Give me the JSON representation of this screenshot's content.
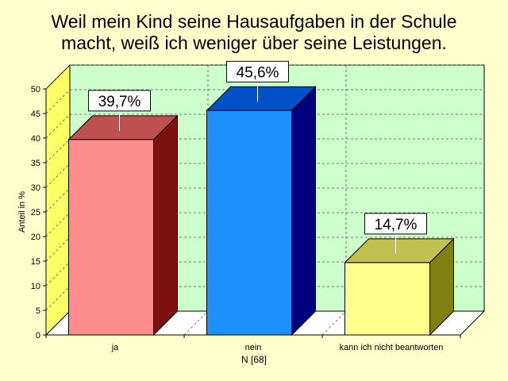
{
  "chart_data": {
    "type": "bar",
    "title": "Weil mein Kind seine Hausaufgaben in der Schule macht, weiß ich weniger über seine Leistungen.",
    "title_lines": [
      "Weil mein Kind seine Hausaufgaben in der Schule",
      "macht, weiß ich weniger über seine Leistungen."
    ],
    "categories": [
      "ja",
      "nein",
      "kann ich nicht beantworten"
    ],
    "values": [
      39.7,
      45.6,
      14.7
    ],
    "data_labels": [
      "39,7%",
      "45,6%",
      "14,7%"
    ],
    "xlabel": "N [68]",
    "ylabel": "Anteil in %",
    "ylim": [
      0,
      50
    ],
    "yticks": [
      0,
      5,
      10,
      15,
      20,
      25,
      30,
      35,
      40,
      45,
      50
    ],
    "grid": true,
    "bar_colors": [
      {
        "front": "#ff8c8c",
        "top": "#c05050",
        "side": "#7f1010"
      },
      {
        "front": "#1e90ff",
        "top": "#0050c8",
        "side": "#00007f"
      },
      {
        "front": "#ffff8c",
        "top": "#c0c050",
        "side": "#808010"
      }
    ],
    "background_color": "#ffffcc",
    "plot_back_color": "#ccffcc",
    "wall_color": "#ffff66"
  }
}
